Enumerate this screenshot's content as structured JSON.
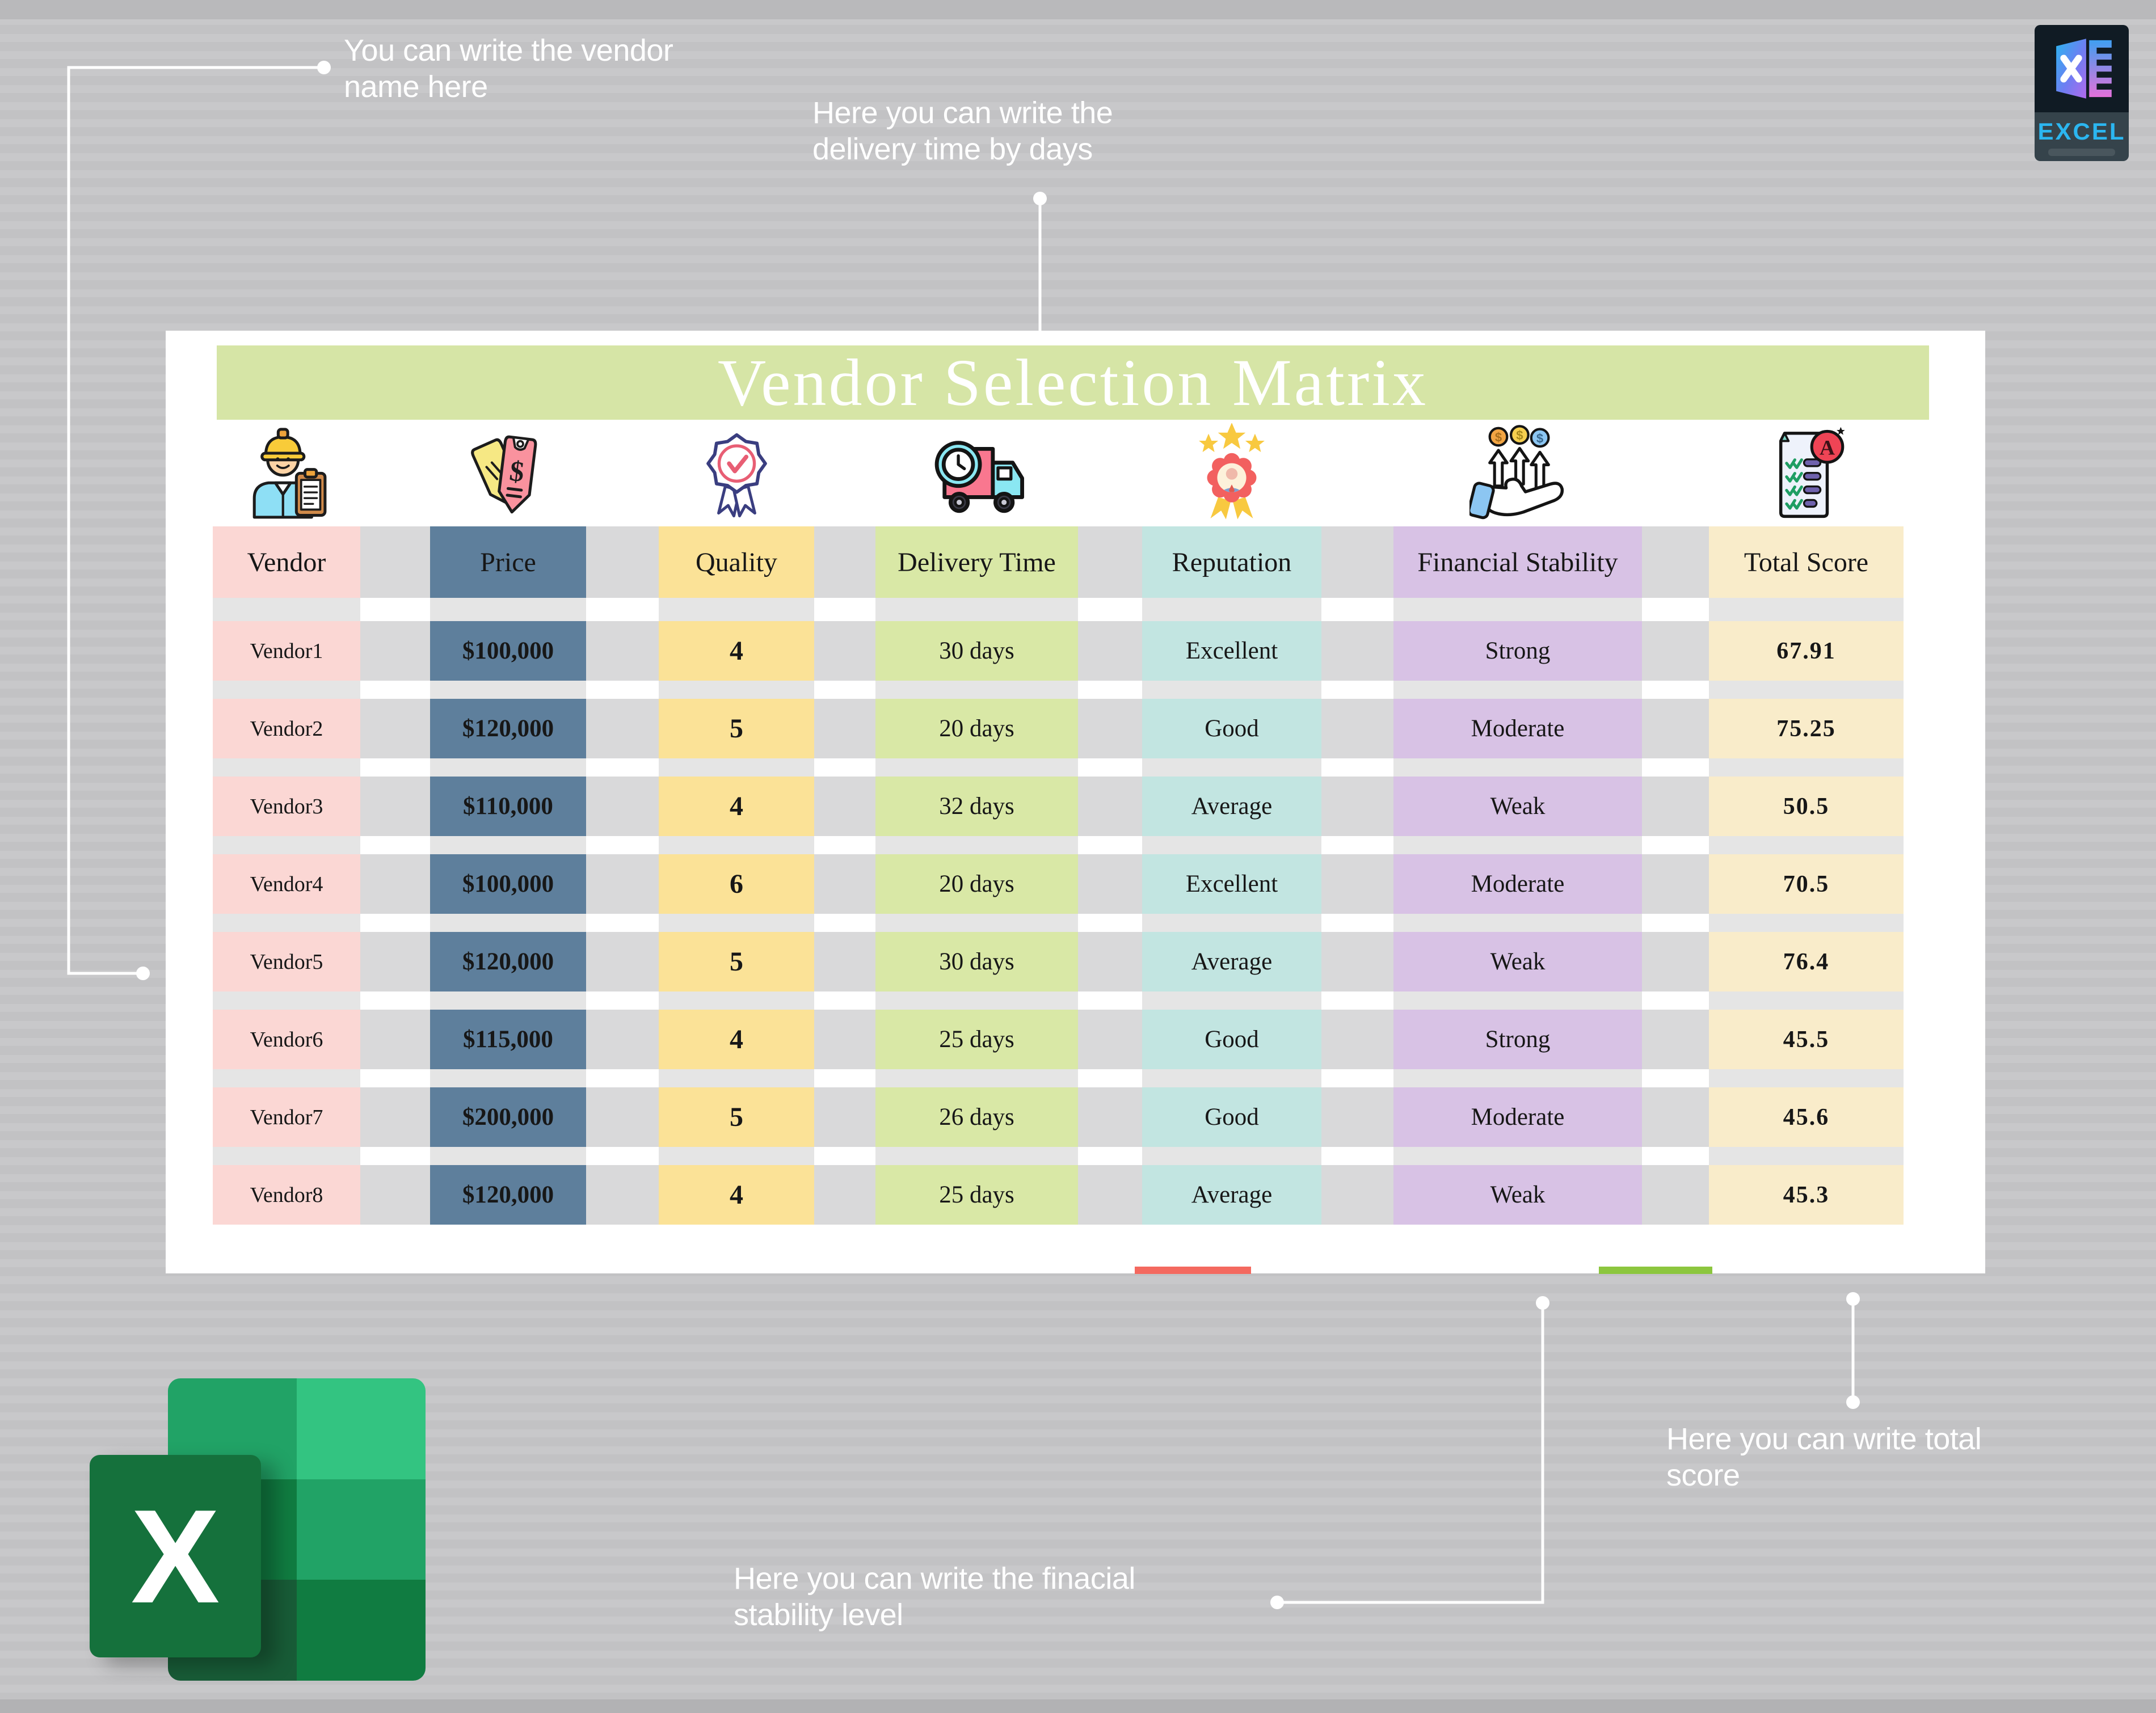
{
  "title": "Vendor Selection Matrix",
  "annotations": {
    "vendor_note": {
      "line1": "You can write the vendor",
      "line2": "name here"
    },
    "delivery_note": {
      "line1": "Here you can write the",
      "line2": "delivery time by days"
    },
    "financial_note": {
      "line1": "Here you can write the finacial",
      "line2": "stability level"
    },
    "total_note": {
      "line1": "Here you can write total",
      "line2": "score"
    }
  },
  "excel_badge": {
    "label": "EXCEL"
  },
  "colors": {
    "page_bg": "#c6c6c8",
    "card_bg": "#ffffff",
    "title_band": "#d6e5a6",
    "gutter": "#d9d9da",
    "separator": "#e5e5e5",
    "separator_gap": "#ffffff",
    "sliver_red": "#f4695f",
    "sliver_green": "#8cc63e",
    "excel_badge_text": "#2bb6f0",
    "excel_brand_green": "#15713c"
  },
  "table": {
    "columns": [
      {
        "key": "vendor",
        "label": "Vendor",
        "color": "#fbd7d4",
        "icon": "worker-icon"
      },
      {
        "key": "price",
        "label": "Price",
        "color": "#5e7f9c",
        "icon": "price-tags-icon"
      },
      {
        "key": "quality",
        "label": "Quality",
        "color": "#fbe297",
        "icon": "quality-medal-icon"
      },
      {
        "key": "delivery",
        "label": "Delivery Time",
        "color": "#d9e8a6",
        "icon": "delivery-truck-icon"
      },
      {
        "key": "reputation",
        "label": "Reputation",
        "color": "#c2e5e1",
        "icon": "reputation-badge-icon"
      },
      {
        "key": "financial",
        "label": "Financial Stability",
        "color": "#d8c2e5",
        "icon": "financial-hand-icon"
      },
      {
        "key": "total",
        "label": "Total Score",
        "color": "#f9ecca",
        "icon": "score-report-icon"
      }
    ],
    "rows": [
      {
        "vendor": "Vendor1",
        "price": "$100,000",
        "quality": "4",
        "delivery": "30 days",
        "reputation": "Excellent",
        "financial": "Strong",
        "total": "67.91"
      },
      {
        "vendor": "Vendor2",
        "price": "$120,000",
        "quality": "5",
        "delivery": "20 days",
        "reputation": "Good",
        "financial": "Moderate",
        "total": "75.25"
      },
      {
        "vendor": "Vendor3",
        "price": "$110,000",
        "quality": "4",
        "delivery": "32 days",
        "reputation": "Average",
        "financial": "Weak",
        "total": "50.5"
      },
      {
        "vendor": "Vendor4",
        "price": "$100,000",
        "quality": "6",
        "delivery": "20 days",
        "reputation": "Excellent",
        "financial": "Moderate",
        "total": "70.5"
      },
      {
        "vendor": "Vendor5",
        "price": "$120,000",
        "quality": "5",
        "delivery": "30 days",
        "reputation": "Average",
        "financial": "Weak",
        "total": "76.4"
      },
      {
        "vendor": "Vendor6",
        "price": "$115,000",
        "quality": "4",
        "delivery": "25 days",
        "reputation": "Good",
        "financial": "Strong",
        "total": "45.5"
      },
      {
        "vendor": "Vendor7",
        "price": "$200,000",
        "quality": "5",
        "delivery": "26 days",
        "reputation": "Good",
        "financial": "Moderate",
        "total": "45.6"
      },
      {
        "vendor": "Vendor8",
        "price": "$120,000",
        "quality": "4",
        "delivery": "25 days",
        "reputation": "Average",
        "financial": "Weak",
        "total": "45.3"
      }
    ]
  }
}
